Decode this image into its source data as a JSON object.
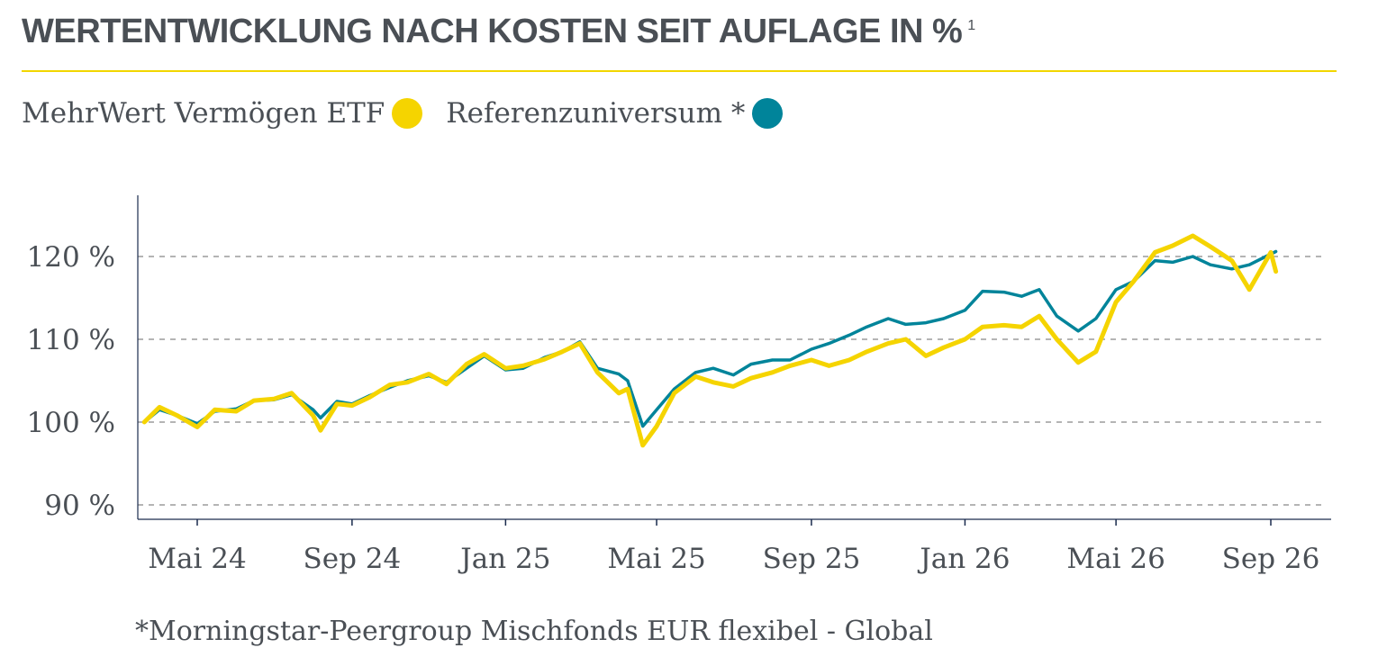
{
  "title": "WERTENTWICKLUNG NACH KOSTEN SEIT AUFLAGE IN %",
  "title_sup": "1",
  "colors": {
    "title_rule": "#f2d600",
    "etf": "#f5d400",
    "reference": "#00849a",
    "text": "#4a4f55",
    "grid": "#888888",
    "axis": "#1a2b4d"
  },
  "legend": [
    {
      "label": "MehrWert Vermögen ETF",
      "color": "#f5d400"
    },
    {
      "label": "Referenzuniversum *",
      "color": "#00849a"
    }
  ],
  "footnote": "*Morningstar-Peergroup Mischfonds EUR flexibel - Global",
  "chart_data": {
    "type": "line",
    "title": "",
    "xlabel": "",
    "ylabel": "",
    "ylim": [
      88.5,
      128
    ],
    "grid": "horizontal dashed",
    "y_ticks": [
      {
        "value": 90,
        "label": "90 %"
      },
      {
        "value": 100,
        "label": "100 %"
      },
      {
        "value": 110,
        "label": "110 %"
      },
      {
        "value": 120,
        "label": "120 %"
      }
    ],
    "x_ticks": [
      {
        "x": "2024-05",
        "label": "Mai 24"
      },
      {
        "x": "2024-09",
        "label": "Sep 24"
      },
      {
        "x": "2025-01",
        "label": "Jan 25"
      },
      {
        "x": "2025-05",
        "label": "Mai 25"
      },
      {
        "x": "2025-09",
        "label": "Sep 25"
      },
      {
        "x": "2026-01",
        "label": "Jan 26"
      },
      {
        "x": "2026-05",
        "label": "Mai 26"
      },
      {
        "x": "2026-09",
        "label": "Sep 26"
      }
    ],
    "x": [
      "2024-03-20",
      "2024-04-01",
      "2024-04-15",
      "2024-05-01",
      "2024-05-15",
      "2024-06-01",
      "2024-06-15",
      "2024-07-01",
      "2024-07-15",
      "2024-08-01",
      "2024-08-07",
      "2024-08-20",
      "2024-09-01",
      "2024-09-15",
      "2024-10-01",
      "2024-10-15",
      "2024-11-01",
      "2024-11-15",
      "2024-12-01",
      "2024-12-15",
      "2025-01-01",
      "2025-01-15",
      "2025-02-01",
      "2025-02-15",
      "2025-03-01",
      "2025-03-15",
      "2025-04-01",
      "2025-04-08",
      "2025-04-20",
      "2025-05-01",
      "2025-05-15",
      "2025-06-01",
      "2025-06-15",
      "2025-07-01",
      "2025-07-15",
      "2025-08-01",
      "2025-08-15",
      "2025-09-01",
      "2025-09-15",
      "2025-10-01",
      "2025-10-15",
      "2025-11-01",
      "2025-11-15",
      "2025-12-01",
      "2025-12-15",
      "2026-01-01",
      "2026-01-15",
      "2026-02-01",
      "2026-02-15",
      "2026-03-01",
      "2026-03-15",
      "2026-04-01",
      "2026-04-15",
      "2026-05-01",
      "2026-05-15",
      "2026-06-01",
      "2026-06-15",
      "2026-07-01",
      "2026-07-15",
      "2026-08-01",
      "2026-08-15",
      "2026-09-01",
      "2026-09-05"
    ],
    "series": [
      {
        "name": "MehrWert Vermögen ETF",
        "color": "#f5d400",
        "values": [
          100.0,
          101.8,
          100.8,
          99.4,
          101.5,
          101.3,
          102.6,
          102.8,
          103.5,
          100.8,
          99.0,
          102.2,
          102.0,
          103.0,
          104.5,
          104.8,
          105.8,
          104.6,
          107.0,
          108.2,
          106.5,
          106.8,
          107.6,
          108.5,
          109.5,
          106.0,
          103.5,
          104.0,
          97.2,
          99.5,
          103.5,
          105.5,
          104.8,
          104.3,
          105.3,
          106.0,
          106.8,
          107.5,
          106.8,
          107.5,
          108.5,
          109.5,
          110.0,
          108.0,
          109.0,
          110.0,
          111.5,
          111.7,
          111.5,
          112.8,
          110.0,
          107.2,
          108.5,
          114.5,
          117.0,
          120.5,
          121.3,
          122.5,
          121.2,
          119.5,
          116.0,
          120.5,
          118.2
        ]
      },
      {
        "name": "Referenzuniversum *",
        "color": "#00849a",
        "values": [
          100.0,
          101.5,
          100.8,
          99.8,
          101.3,
          101.6,
          102.6,
          102.7,
          103.3,
          101.5,
          100.5,
          102.5,
          102.2,
          103.2,
          104.2,
          105.0,
          105.6,
          104.8,
          106.5,
          108.0,
          106.3,
          106.5,
          107.8,
          108.5,
          109.7,
          106.5,
          105.8,
          105.0,
          99.5,
          101.5,
          104.0,
          106.0,
          106.5,
          105.7,
          107.0,
          107.5,
          107.5,
          108.8,
          109.5,
          110.5,
          111.5,
          112.5,
          111.8,
          112.0,
          112.5,
          113.5,
          115.8,
          115.7,
          115.2,
          116.0,
          112.8,
          111.0,
          112.5,
          116.0,
          117.0,
          119.5,
          119.3,
          120.0,
          119.0,
          118.5,
          119.0,
          120.3,
          120.6
        ]
      }
    ]
  }
}
